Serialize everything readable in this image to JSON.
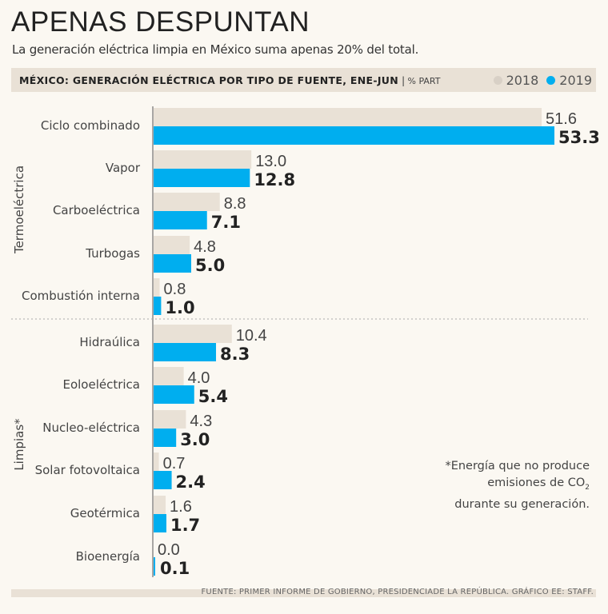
{
  "title": "APENAS DESPUNTAN",
  "subtitle": "La generación eléctrica limpia en México suma apenas 20% del total.",
  "header": {
    "label": "MÉXICO: GENERACIÓN ELÉCTRICA POR TIPO DE FUENTE, ENE-JUN",
    "separator": "|",
    "unit": "% PART"
  },
  "note": {
    "line1": "*Energía que no produce",
    "line2_prefix": "emisiones de CO",
    "line2_sub": "2",
    "line3": "durante su generación."
  },
  "source": "FUENTE: PRIMER INFORME DE GOBIERNO, PRESIDENCIADE LA REPÚBLICA. GRÁFICO EE: STAFF.",
  "colors": {
    "series_2018": "#e9e1d6",
    "series_2019": "#00aeef",
    "background": "#fbf8f2",
    "label_2018": "#444444",
    "label_2019": "#222222"
  },
  "chart_data": {
    "type": "bar",
    "orientation": "horizontal",
    "xlim": [
      0,
      60
    ],
    "legend": [
      {
        "name": "2018",
        "color_dot": "#d8d0c6"
      },
      {
        "name": "2019",
        "color_dot": "#00aeef"
      }
    ],
    "groups": [
      {
        "name": "Termoeléctrica",
        "categories": [
          "Ciclo combinado",
          "Vapor",
          "Carboeléctrica",
          "Turbogas",
          "Combustión interna"
        ]
      },
      {
        "name": "Limpias*",
        "categories": [
          "Hidraúlica",
          "Eoloeléctrica",
          "Nucleo-eléctrica",
          "Solar fotovoltaica",
          "Geotérmica",
          "Bioenergía"
        ]
      }
    ],
    "categories": [
      "Ciclo combinado",
      "Vapor",
      "Carboeléctrica",
      "Turbogas",
      "Combustión interna",
      "Hidraúlica",
      "Eoloeléctrica",
      "Nucleo-eléctrica",
      "Solar fotovoltaica",
      "Geotérmica",
      "Bioenergía"
    ],
    "series": [
      {
        "name": "2018",
        "values": [
          51.6,
          13.0,
          8.8,
          4.8,
          0.8,
          10.4,
          4.0,
          4.3,
          0.7,
          1.6,
          0.0
        ],
        "labels": [
          "51.6",
          "13.0",
          "8.8",
          "4.8",
          "0.8",
          "10.4",
          "4.0",
          "4.3",
          "0.7",
          "1.6",
          "0.0"
        ]
      },
      {
        "name": "2019",
        "values": [
          53.3,
          12.8,
          7.1,
          5.0,
          1.0,
          8.3,
          5.4,
          3.0,
          2.4,
          1.7,
          0.1
        ],
        "labels": [
          "53.3",
          "12.8",
          "7.1",
          "5.0",
          "1.0",
          "8.3",
          "5.4",
          "3.0",
          "2.4",
          "1.7",
          "0.1"
        ]
      }
    ]
  }
}
